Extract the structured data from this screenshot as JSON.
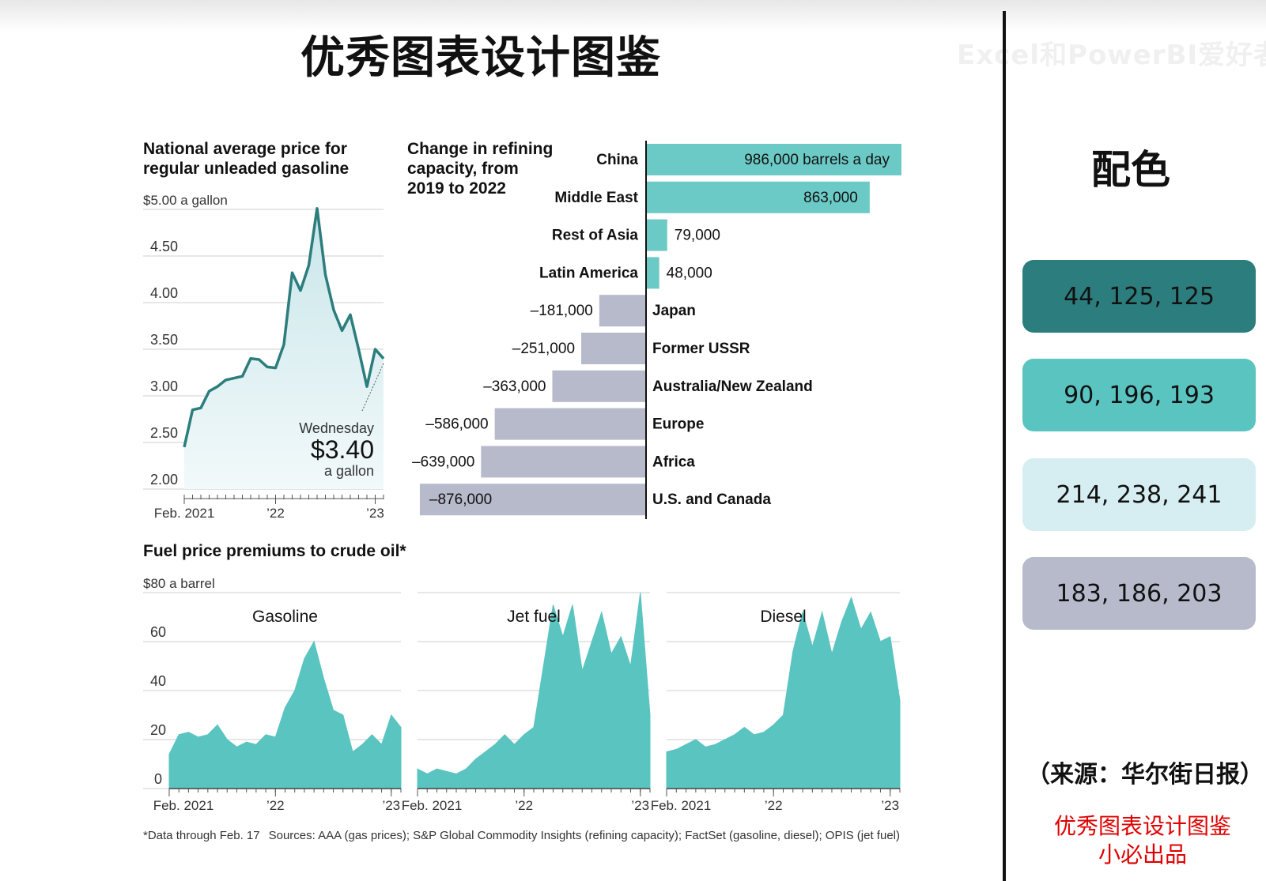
{
  "page": {
    "title": "优秀图表设计图鉴",
    "watermark": "Excel和PowerBI爱好者"
  },
  "sidebar": {
    "heading": "配色",
    "swatches": [
      {
        "label": "44, 125, 125",
        "color": "#2c7d7d"
      },
      {
        "label": "90, 196, 193",
        "color": "#5ac4c1"
      },
      {
        "label": "214, 238, 241",
        "color": "#d6eef1"
      },
      {
        "label": "183, 186, 203",
        "color": "#b7bacb"
      }
    ],
    "source": "（来源：华尔街日报）",
    "credit_line1": "优秀图表设计图鉴",
    "credit_line2": "小必出品"
  },
  "footer": {
    "note": "*Data through Feb. 17",
    "sources": "Sources: AAA (gas prices); S&P Global Commodity Insights (refining capacity); FactSet (gasoline, diesel); OPIS (jet fuel)"
  },
  "chart_data": [
    {
      "id": "gas_price",
      "type": "area",
      "title": "National average price for regular unleaded gasoline",
      "y_unit_label": "$5.00 a gallon",
      "ylim": [
        2.0,
        5.0
      ],
      "yticks": [
        2.0,
        2.5,
        3.0,
        3.5,
        4.0,
        4.5,
        5.0
      ],
      "ytick_labels": [
        "2.00",
        "2.50",
        "3.00",
        "3.50",
        "4.00",
        "4.50",
        "$5.00 a gallon"
      ],
      "xlim": [
        "2021-02",
        "2023-02"
      ],
      "xtick_labels": [
        {
          "x": "2021-02",
          "label": "Feb. 2021"
        },
        {
          "x": "2022-01",
          "label": "’22"
        },
        {
          "x": "2023-01",
          "label": "’23"
        }
      ],
      "x": [
        "2021-02",
        "2021-03",
        "2021-04",
        "2021-05",
        "2021-06",
        "2021-07",
        "2021-08",
        "2021-09",
        "2021-10",
        "2021-11",
        "2021-12",
        "2022-01",
        "2022-02",
        "2022-03",
        "2022-04",
        "2022-05",
        "2022-06",
        "2022-07",
        "2022-08",
        "2022-09",
        "2022-10",
        "2022-11",
        "2022-12",
        "2023-01",
        "2023-02"
      ],
      "y": [
        2.45,
        2.85,
        2.87,
        3.05,
        3.1,
        3.17,
        3.19,
        3.21,
        3.4,
        3.39,
        3.31,
        3.3,
        3.55,
        4.32,
        4.13,
        4.4,
        5.01,
        4.3,
        3.92,
        3.7,
        3.87,
        3.5,
        3.1,
        3.5,
        3.4
      ],
      "annotation": {
        "line1": "Wednesday",
        "value": "$3.40",
        "line2": "a gallon"
      },
      "colors": {
        "line": "#2c7d7d",
        "fill_top": "#c9e6ea",
        "fill_bottom": "#f2f9fa"
      }
    },
    {
      "id": "refining",
      "type": "bar",
      "orientation": "horizontal",
      "title_lines": [
        "Change in refining",
        "capacity, from",
        "2019 to 2022"
      ],
      "categories": [
        "China",
        "Middle East",
        "Rest of Asia",
        "Latin America",
        "Japan",
        "Former USSR",
        "Australia/New Zealand",
        "Europe",
        "Africa",
        "U.S. and Canada"
      ],
      "values": [
        986000,
        863000,
        79000,
        48000,
        -181000,
        -251000,
        -363000,
        -586000,
        -639000,
        -876000
      ],
      "value_labels": [
        "986,000 barrels a day",
        "863,000",
        "79,000",
        "48,000",
        "–181,000",
        "–251,000",
        "–363,000",
        "–586,000",
        "–639,000",
        "–876,000"
      ],
      "colors": {
        "positive": "#6ccac6",
        "negative": "#b7bacb"
      }
    },
    {
      "id": "premiums",
      "type": "area",
      "title": "Fuel price premiums to crude oil*",
      "y_unit_label": "$80 a barrel",
      "ylim": [
        0,
        80
      ],
      "yticks": [
        0,
        20,
        40,
        60,
        80
      ],
      "xtick_labels": [
        "Feb. 2021",
        "’22",
        "’23"
      ],
      "color": "#5ac4c1",
      "panels": [
        {
          "name": "Gasoline",
          "x": [
            "2021-02",
            "2021-03",
            "2021-04",
            "2021-05",
            "2021-06",
            "2021-07",
            "2021-08",
            "2021-09",
            "2021-10",
            "2021-11",
            "2021-12",
            "2022-01",
            "2022-02",
            "2022-03",
            "2022-04",
            "2022-05",
            "2022-06",
            "2022-07",
            "2022-08",
            "2022-09",
            "2022-10",
            "2022-11",
            "2022-12",
            "2023-01",
            "2023-02"
          ],
          "y": [
            14,
            22,
            23,
            21,
            22,
            26,
            20,
            17,
            19,
            18,
            22,
            21,
            33,
            40,
            53,
            60,
            45,
            32,
            30,
            15,
            18,
            22,
            18,
            30,
            25
          ]
        },
        {
          "name": "Jet fuel",
          "x": [
            "2021-02",
            "2021-03",
            "2021-04",
            "2021-05",
            "2021-06",
            "2021-07",
            "2021-08",
            "2021-09",
            "2021-10",
            "2021-11",
            "2021-12",
            "2022-01",
            "2022-02",
            "2022-03",
            "2022-04",
            "2022-05",
            "2022-06",
            "2022-07",
            "2022-08",
            "2022-09",
            "2022-10",
            "2022-11",
            "2022-12",
            "2023-01",
            "2023-02"
          ],
          "y": [
            8,
            6,
            8,
            7,
            6,
            8,
            12,
            15,
            18,
            22,
            18,
            22,
            25,
            50,
            75,
            62,
            75,
            48,
            60,
            72,
            55,
            62,
            50,
            80,
            30
          ]
        },
        {
          "name": "Diesel",
          "x": [
            "2021-02",
            "2021-03",
            "2021-04",
            "2021-05",
            "2021-06",
            "2021-07",
            "2021-08",
            "2021-09",
            "2021-10",
            "2021-11",
            "2021-12",
            "2022-01",
            "2022-02",
            "2022-03",
            "2022-04",
            "2022-05",
            "2022-06",
            "2022-07",
            "2022-08",
            "2022-09",
            "2022-10",
            "2022-11",
            "2022-12",
            "2023-01",
            "2023-02"
          ],
          "y": [
            15,
            16,
            18,
            20,
            17,
            18,
            20,
            22,
            25,
            22,
            23,
            26,
            30,
            56,
            72,
            58,
            72,
            55,
            68,
            78,
            65,
            72,
            60,
            62,
            36
          ]
        }
      ]
    }
  ]
}
